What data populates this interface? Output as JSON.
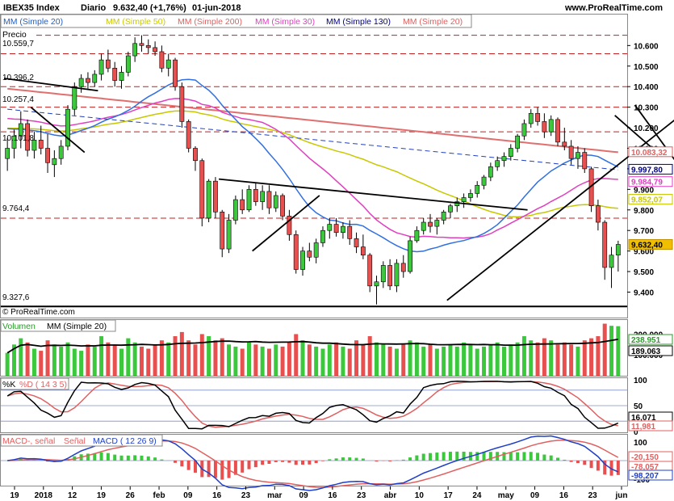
{
  "header": {
    "symbol": "IBEX35 Index",
    "period": "Diario",
    "quote": "9.632,40 (+1,76%)",
    "date": "01-jun-2018",
    "site": "www.ProRealTime.com"
  },
  "legend_top": [
    {
      "label": "MM (Simple 20)",
      "color": "#1f5fc6"
    },
    {
      "label": "MM (Simple 50)",
      "color": "#c8c800"
    },
    {
      "label": "MM (Simple 200)",
      "color": "#e06060"
    },
    {
      "label": "MM (Simple 30)",
      "color": "#e040c0"
    },
    {
      "label": "MM (Simple 130)",
      "color": "#000080"
    },
    {
      "label": "MM (Simple 20)",
      "color": "#e06060"
    }
  ],
  "price_panel": {
    "label": "Precio",
    "copyright": "© ProRealTime.com",
    "left_levels": [
      "10.559,7",
      "10.396,2",
      "10.257,4",
      "10.101,8",
      "9.764,4",
      "9.327,6"
    ],
    "y_ticks": [
      "10.600",
      "10.500",
      "10.400",
      "10.300",
      "10.200",
      "10.100",
      "10.000",
      "9.900",
      "9.800",
      "9.700",
      "9.600",
      "9.500",
      "9.400"
    ],
    "value_tags": [
      {
        "text": "10.083,32",
        "color": "#e06060"
      },
      {
        "text": "9.997,80",
        "color": "#000080"
      },
      {
        "text": "9.984,79",
        "color": "#e040c0"
      },
      {
        "text": "9.852,07",
        "color": "#c8c800"
      },
      {
        "text": "9.632,40",
        "color": "#f0c000"
      }
    ]
  },
  "volume_panel": {
    "label": "Volumen",
    "ma_label": "MM (Simple 20)",
    "y_ticks": [
      "200.000",
      "100.000"
    ],
    "value_tags": [
      "238.951",
      "189.063"
    ]
  },
  "stoch_panel": {
    "k_label": "%K",
    "d_label": "%D ( 14 3 5)",
    "y_ticks": [
      "100",
      "50",
      "0"
    ],
    "value_tags": [
      "16,071",
      "11,981"
    ]
  },
  "macd_panel": {
    "hist_label": "MACD-, señal",
    "signal_label": "Señal",
    "macd_label": "MACD ( 12 26 9)",
    "y_ticks": [
      "100",
      "0",
      "-100"
    ],
    "value_tags": [
      "-20,150",
      "-78,057",
      "-98,207"
    ]
  },
  "x_axis": [
    "19",
    "2018",
    "12",
    "19",
    "26",
    "feb",
    "09",
    "16",
    "23",
    "mar",
    "09",
    "16",
    "23",
    "abr",
    "10",
    "17",
    "24",
    "may",
    "09",
    "16",
    "23",
    "jun"
  ],
  "chart_data": {
    "type": "candlestick",
    "title": "IBEX35 Index Diario",
    "ylim": [
      9280,
      10680
    ],
    "ohlc": [
      [
        10050,
        10150,
        9990,
        10100
      ],
      [
        10100,
        10190,
        10050,
        10160
      ],
      [
        10160,
        10280,
        10100,
        10220
      ],
      [
        10220,
        10240,
        10060,
        10090
      ],
      [
        10090,
        10180,
        10050,
        10140
      ],
      [
        10140,
        10210,
        10070,
        10100
      ],
      [
        10100,
        10170,
        9980,
        10030
      ],
      [
        10020,
        10090,
        9960,
        10050
      ],
      [
        10050,
        10140,
        10020,
        10110
      ],
      [
        10110,
        10310,
        10090,
        10290
      ],
      [
        10290,
        10420,
        10260,
        10400
      ],
      [
        10400,
        10460,
        10370,
        10440
      ],
      [
        10440,
        10470,
        10390,
        10420
      ],
      [
        10420,
        10480,
        10400,
        10460
      ],
      [
        10460,
        10560,
        10430,
        10530
      ],
      [
        10530,
        10580,
        10470,
        10490
      ],
      [
        10490,
        10520,
        10400,
        10430
      ],
      [
        10430,
        10500,
        10390,
        10470
      ],
      [
        10470,
        10570,
        10450,
        10550
      ],
      [
        10550,
        10640,
        10520,
        10610
      ],
      [
        10610,
        10650,
        10570,
        10600
      ],
      [
        10600,
        10630,
        10560,
        10590
      ],
      [
        10590,
        10620,
        10550,
        10570
      ],
      [
        10570,
        10600,
        10470,
        10490
      ],
      [
        10490,
        10560,
        10450,
        10530
      ],
      [
        10530,
        10540,
        10380,
        10400
      ],
      [
        10400,
        10420,
        10200,
        10230
      ],
      [
        10230,
        10240,
        10080,
        10100
      ],
      [
        10100,
        10110,
        9990,
        10040
      ],
      [
        10040,
        10050,
        9720,
        9760
      ],
      [
        9760,
        9950,
        9740,
        9940
      ],
      [
        9940,
        9960,
        9760,
        9790
      ],
      [
        9790,
        9800,
        9570,
        9610
      ],
      [
        9610,
        9780,
        9590,
        9750
      ],
      [
        9750,
        9870,
        9730,
        9850
      ],
      [
        9850,
        9900,
        9780,
        9800
      ],
      [
        9800,
        9920,
        9790,
        9900
      ],
      [
        9900,
        9930,
        9820,
        9840
      ],
      [
        9840,
        9920,
        9800,
        9890
      ],
      [
        9890,
        9920,
        9780,
        9810
      ],
      [
        9810,
        9890,
        9790,
        9870
      ],
      [
        9870,
        9880,
        9750,
        9770
      ],
      [
        9770,
        9800,
        9650,
        9680
      ],
      [
        9680,
        9700,
        9490,
        9510
      ],
      [
        9510,
        9620,
        9480,
        9600
      ],
      [
        9600,
        9640,
        9550,
        9570
      ],
      [
        9570,
        9660,
        9540,
        9640
      ],
      [
        9640,
        9720,
        9620,
        9700
      ],
      [
        9700,
        9760,
        9660,
        9730
      ],
      [
        9730,
        9760,
        9670,
        9690
      ],
      [
        9690,
        9740,
        9660,
        9720
      ],
      [
        9720,
        9750,
        9630,
        9660
      ],
      [
        9660,
        9690,
        9590,
        9620
      ],
      [
        9620,
        9680,
        9560,
        9580
      ],
      [
        9580,
        9590,
        9400,
        9430
      ],
      [
        9430,
        9480,
        9340,
        9450
      ],
      [
        9450,
        9550,
        9420,
        9530
      ],
      [
        9530,
        9560,
        9410,
        9430
      ],
      [
        9430,
        9560,
        9400,
        9540
      ],
      [
        9540,
        9580,
        9470,
        9500
      ],
      [
        9500,
        9670,
        9490,
        9650
      ],
      [
        9650,
        9720,
        9640,
        9700
      ],
      [
        9700,
        9760,
        9680,
        9740
      ],
      [
        9740,
        9780,
        9690,
        9720
      ],
      [
        9720,
        9760,
        9680,
        9750
      ],
      [
        9750,
        9800,
        9730,
        9790
      ],
      [
        9790,
        9830,
        9760,
        9820
      ],
      [
        9820,
        9860,
        9790,
        9840
      ],
      [
        9840,
        9880,
        9810,
        9860
      ],
      [
        9860,
        9900,
        9840,
        9880
      ],
      [
        9880,
        9940,
        9860,
        9920
      ],
      [
        9920,
        9970,
        9900,
        9960
      ],
      [
        9960,
        10030,
        9940,
        10010
      ],
      [
        10010,
        10060,
        9990,
        10040
      ],
      [
        10040,
        10080,
        10010,
        10060
      ],
      [
        10060,
        10120,
        10040,
        10100
      ],
      [
        10100,
        10170,
        10080,
        10160
      ],
      [
        10160,
        10240,
        10140,
        10220
      ],
      [
        10220,
        10290,
        10200,
        10270
      ],
      [
        10270,
        10300,
        10210,
        10230
      ],
      [
        10230,
        10270,
        10150,
        10180
      ],
      [
        10180,
        10260,
        10160,
        10240
      ],
      [
        10240,
        10250,
        10110,
        10130
      ],
      [
        10130,
        10200,
        10090,
        10110
      ],
      [
        10110,
        10140,
        10020,
        10050
      ],
      [
        10050,
        10110,
        10000,
        10080
      ],
      [
        10080,
        10100,
        9980,
        10000
      ],
      [
        10000,
        10010,
        9790,
        9820
      ],
      [
        9820,
        9850,
        9700,
        9740
      ],
      [
        9740,
        9750,
        9460,
        9520
      ],
      [
        9520,
        9620,
        9420,
        9580
      ],
      [
        9580,
        9650,
        9500,
        9632
      ]
    ],
    "volume": [
      110,
      150,
      180,
      160,
      130,
      120,
      170,
      150,
      140,
      160,
      130,
      120,
      150,
      140,
      190,
      160,
      150,
      130,
      180,
      160,
      140,
      130,
      150,
      170,
      160,
      190,
      210,
      170,
      150,
      200,
      190,
      170,
      180,
      150,
      140,
      130,
      160,
      150,
      140,
      130,
      150,
      140,
      160,
      200,
      170,
      150,
      140,
      130,
      150,
      160,
      140,
      130,
      170,
      150,
      190,
      160,
      150,
      140,
      130,
      150,
      170,
      160,
      140,
      150,
      130,
      140,
      150,
      140,
      160,
      150,
      130,
      140,
      150,
      160,
      140,
      150,
      160,
      190,
      170,
      160,
      180,
      170,
      150,
      160,
      150,
      140,
      170,
      180,
      190,
      250,
      240,
      238
    ]
  }
}
